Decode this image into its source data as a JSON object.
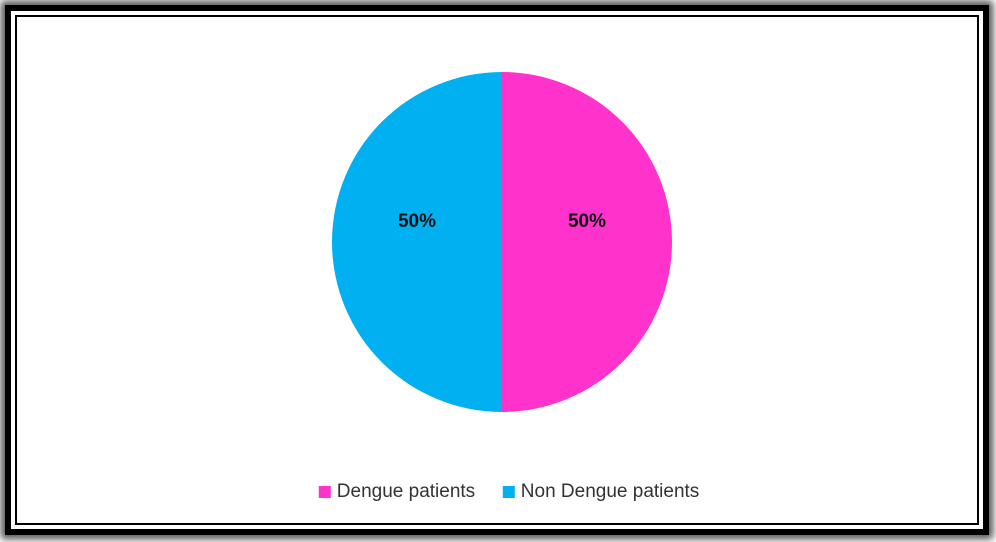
{
  "chart_data": {
    "type": "pie",
    "categories": [
      "Dengue patients",
      "Non Dengue patients"
    ],
    "values": [
      50,
      50
    ],
    "value_labels": [
      "50%",
      "50%"
    ],
    "colors": [
      "#ff33cc",
      "#00b0f0"
    ],
    "legend": "bottom"
  }
}
